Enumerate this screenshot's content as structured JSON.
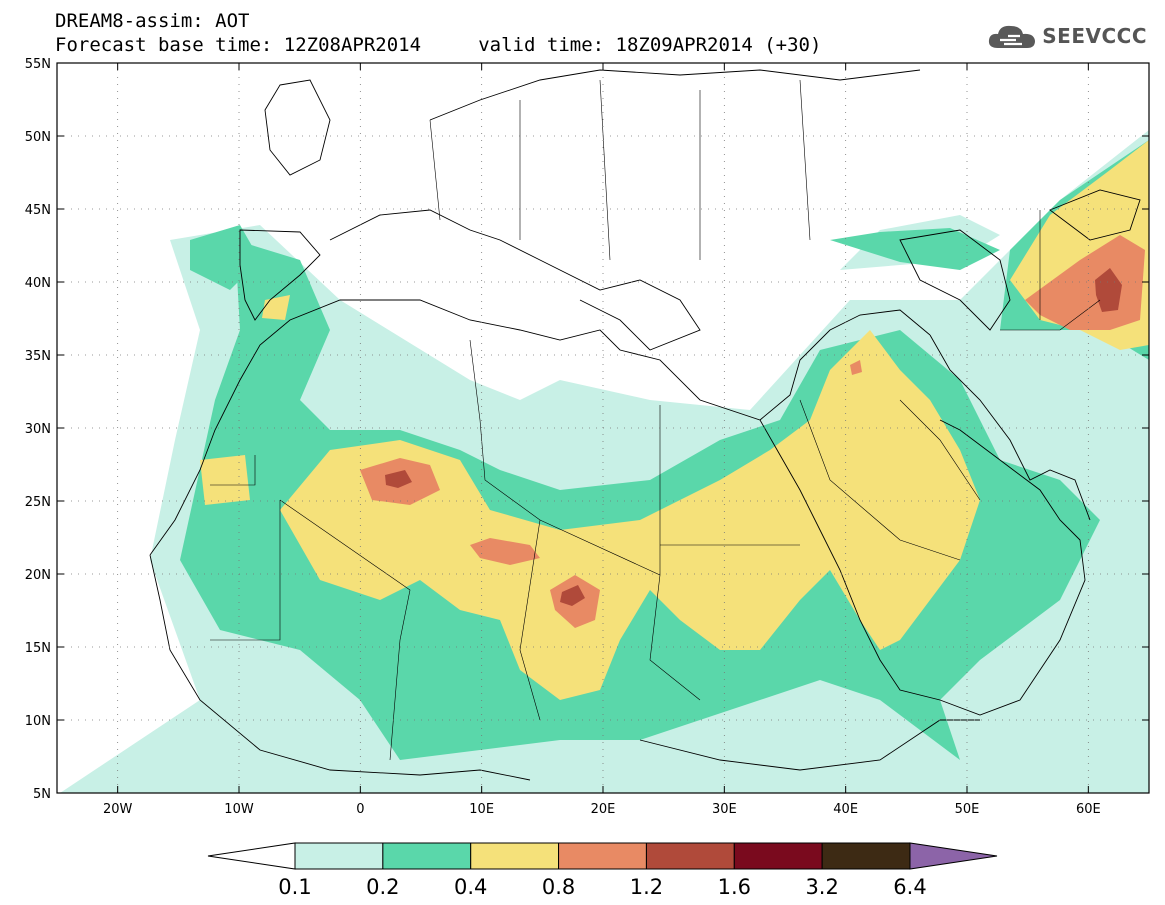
{
  "header": {
    "title_line1": "DREAM8-assim: AOT",
    "title_line2": "Forecast base time: 12Z08APR2014     valid time: 18Z09APR2014 (+30)",
    "logo_text": "SEEVCCC"
  },
  "map": {
    "lon_range": [
      -25,
      65
    ],
    "lat_range": [
      5,
      55
    ],
    "lat_ticks": [
      {
        "value": 55,
        "label": "55N"
      },
      {
        "value": 50,
        "label": "50N"
      },
      {
        "value": 45,
        "label": "45N"
      },
      {
        "value": 40,
        "label": "40N"
      },
      {
        "value": 35,
        "label": "35N"
      },
      {
        "value": 30,
        "label": "30N"
      },
      {
        "value": 25,
        "label": "25N"
      },
      {
        "value": 20,
        "label": "20N"
      },
      {
        "value": 15,
        "label": "15N"
      },
      {
        "value": 10,
        "label": "10N"
      },
      {
        "value": 5,
        "label": "5N"
      }
    ],
    "lon_ticks": [
      {
        "value": -20,
        "label": "20W"
      },
      {
        "value": -10,
        "label": "10W"
      },
      {
        "value": 0,
        "label": "0"
      },
      {
        "value": 10,
        "label": "10E"
      },
      {
        "value": 20,
        "label": "20E"
      },
      {
        "value": 30,
        "label": "30E"
      },
      {
        "value": 40,
        "label": "40E"
      },
      {
        "value": 50,
        "label": "50E"
      },
      {
        "value": 60,
        "label": "60E"
      }
    ],
    "grid": "dotted",
    "colorbar": {
      "levels": [
        "0.1",
        "0.2",
        "0.4",
        "0.8",
        "1.2",
        "1.6",
        "3.2",
        "6.4"
      ],
      "colors": [
        "#ffffff",
        "#c8f0e6",
        "#5ad7aa",
        "#f5e17a",
        "#e88a64",
        "#b04a3a",
        "#7a0a1e",
        "#3d2a14",
        "#8c64a8"
      ]
    }
  }
}
